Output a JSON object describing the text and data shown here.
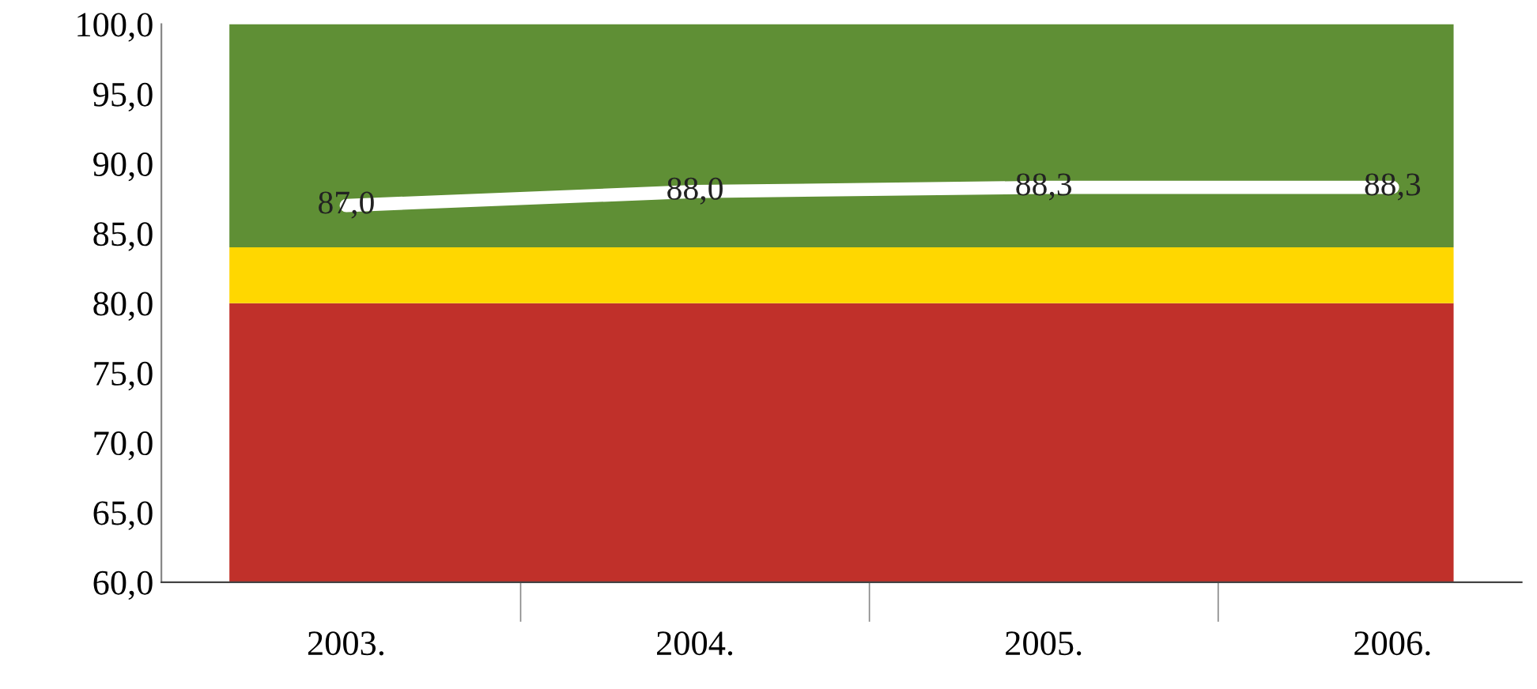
{
  "chart_data": {
    "type": "line",
    "categories": [
      "2003.",
      "2004.",
      "2005.",
      "2006."
    ],
    "series": [
      {
        "color": "#ffffff",
        "values": [
          87.0,
          88.0,
          88.3,
          88.3
        ],
        "value_labels": [
          "87,0",
          "88,0",
          "88,3",
          "88,3"
        ]
      }
    ],
    "ylim": [
      60,
      100
    ],
    "yticks": [
      {
        "value": 60,
        "label": "60,0"
      },
      {
        "value": 65,
        "label": "65,0"
      },
      {
        "value": 70,
        "label": "70,0"
      },
      {
        "value": 75,
        "label": "75,0"
      },
      {
        "value": 80,
        "label": "80,0"
      },
      {
        "value": 85,
        "label": "85,0"
      },
      {
        "value": 90,
        "label": "90,0"
      },
      {
        "value": 95,
        "label": "95,0"
      },
      {
        "value": 100,
        "label": "100,0"
      }
    ],
    "bands": [
      {
        "axis": "y",
        "from": 60,
        "to": 80,
        "color": "#c0302a"
      },
      {
        "axis": "y",
        "from": 80,
        "to": 84,
        "color": "#ffd700"
      },
      {
        "axis": "y",
        "from": 84,
        "to": 100,
        "color": "#5f8f35"
      }
    ],
    "grid": false,
    "legend": false,
    "marker": "none",
    "line_style": "solid"
  }
}
